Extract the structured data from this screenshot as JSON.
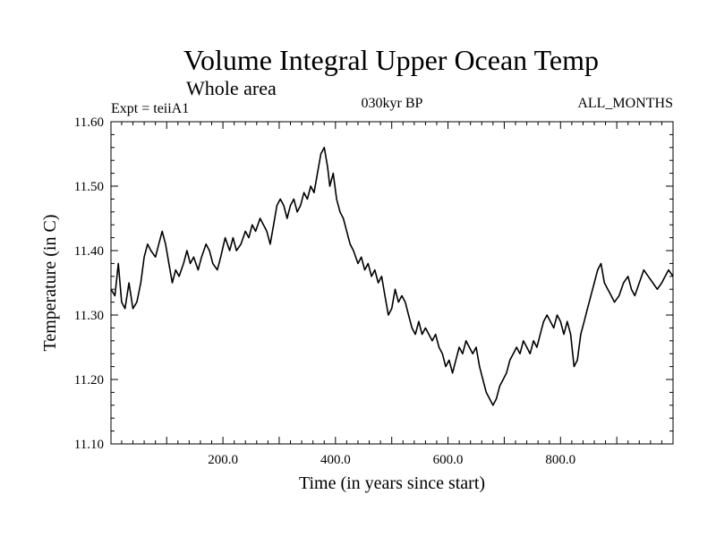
{
  "chart_data": {
    "type": "line",
    "title": "Volume Integral Upper Ocean Temp",
    "subtitle": "Whole area",
    "annotations": {
      "left": "Expt = teiiA1",
      "center": "030kyr BP",
      "right": "ALL_MONTHS"
    },
    "xlabel": "Time (in years since start)",
    "ylabel": "Temperature (in C)",
    "xlim": [
      1,
      1000
    ],
    "ylim": [
      11.1,
      11.6
    ],
    "x_ticks": [
      200,
      400,
      600,
      800
    ],
    "x_tick_labels": [
      "200.0",
      "400.0",
      "600.0",
      "800.0"
    ],
    "y_ticks": [
      11.1,
      11.2,
      11.3,
      11.4,
      11.5,
      11.6
    ],
    "y_tick_labels": [
      "11.10",
      "11.20",
      "11.30",
      "11.40",
      "11.50",
      "11.60"
    ],
    "grid": false,
    "series": [
      {
        "color": "#000000",
        "points": [
          [
            1,
            11.34
          ],
          [
            8,
            11.33
          ],
          [
            14,
            11.38
          ],
          [
            20,
            11.32
          ],
          [
            26,
            11.31
          ],
          [
            33,
            11.35
          ],
          [
            40,
            11.31
          ],
          [
            47,
            11.32
          ],
          [
            54,
            11.35
          ],
          [
            60,
            11.39
          ],
          [
            66,
            11.41
          ],
          [
            72,
            11.4
          ],
          [
            80,
            11.39
          ],
          [
            86,
            11.41
          ],
          [
            92,
            11.43
          ],
          [
            98,
            11.41
          ],
          [
            104,
            11.38
          ],
          [
            110,
            11.35
          ],
          [
            116,
            11.37
          ],
          [
            122,
            11.36
          ],
          [
            130,
            11.38
          ],
          [
            136,
            11.4
          ],
          [
            142,
            11.38
          ],
          [
            148,
            11.39
          ],
          [
            156,
            11.37
          ],
          [
            162,
            11.39
          ],
          [
            170,
            11.41
          ],
          [
            176,
            11.4
          ],
          [
            182,
            11.38
          ],
          [
            190,
            11.37
          ],
          [
            196,
            11.39
          ],
          [
            204,
            11.42
          ],
          [
            212,
            11.4
          ],
          [
            218,
            11.42
          ],
          [
            224,
            11.4
          ],
          [
            232,
            11.41
          ],
          [
            240,
            11.43
          ],
          [
            246,
            11.42
          ],
          [
            252,
            11.44
          ],
          [
            258,
            11.43
          ],
          [
            266,
            11.45
          ],
          [
            272,
            11.44
          ],
          [
            278,
            11.43
          ],
          [
            284,
            11.41
          ],
          [
            290,
            11.44
          ],
          [
            296,
            11.47
          ],
          [
            302,
            11.48
          ],
          [
            308,
            11.47
          ],
          [
            314,
            11.45
          ],
          [
            320,
            11.47
          ],
          [
            326,
            11.48
          ],
          [
            332,
            11.46
          ],
          [
            338,
            11.47
          ],
          [
            344,
            11.49
          ],
          [
            350,
            11.48
          ],
          [
            356,
            11.5
          ],
          [
            362,
            11.49
          ],
          [
            368,
            11.52
          ],
          [
            374,
            11.55
          ],
          [
            380,
            11.56
          ],
          [
            386,
            11.53
          ],
          [
            390,
            11.5
          ],
          [
            396,
            11.52
          ],
          [
            402,
            11.48
          ],
          [
            408,
            11.46
          ],
          [
            414,
            11.45
          ],
          [
            420,
            11.43
          ],
          [
            426,
            11.41
          ],
          [
            432,
            11.4
          ],
          [
            440,
            11.38
          ],
          [
            446,
            11.39
          ],
          [
            452,
            11.37
          ],
          [
            458,
            11.38
          ],
          [
            464,
            11.36
          ],
          [
            470,
            11.37
          ],
          [
            476,
            11.35
          ],
          [
            482,
            11.36
          ],
          [
            488,
            11.33
          ],
          [
            494,
            11.3
          ],
          [
            500,
            11.31
          ],
          [
            506,
            11.34
          ],
          [
            512,
            11.32
          ],
          [
            518,
            11.33
          ],
          [
            524,
            11.32
          ],
          [
            530,
            11.3
          ],
          [
            536,
            11.28
          ],
          [
            542,
            11.27
          ],
          [
            548,
            11.29
          ],
          [
            554,
            11.27
          ],
          [
            560,
            11.28
          ],
          [
            566,
            11.27
          ],
          [
            572,
            11.26
          ],
          [
            578,
            11.27
          ],
          [
            584,
            11.25
          ],
          [
            590,
            11.24
          ],
          [
            596,
            11.22
          ],
          [
            602,
            11.23
          ],
          [
            608,
            11.21
          ],
          [
            614,
            11.23
          ],
          [
            620,
            11.25
          ],
          [
            626,
            11.24
          ],
          [
            632,
            11.26
          ],
          [
            638,
            11.25
          ],
          [
            644,
            11.24
          ],
          [
            650,
            11.25
          ],
          [
            656,
            11.22
          ],
          [
            662,
            11.2
          ],
          [
            668,
            11.18
          ],
          [
            674,
            11.17
          ],
          [
            680,
            11.16
          ],
          [
            686,
            11.17
          ],
          [
            692,
            11.19
          ],
          [
            698,
            11.2
          ],
          [
            704,
            11.21
          ],
          [
            710,
            11.23
          ],
          [
            716,
            11.24
          ],
          [
            722,
            11.25
          ],
          [
            728,
            11.24
          ],
          [
            734,
            11.26
          ],
          [
            740,
            11.25
          ],
          [
            746,
            11.24
          ],
          [
            752,
            11.26
          ],
          [
            758,
            11.25
          ],
          [
            764,
            11.27
          ],
          [
            770,
            11.29
          ],
          [
            776,
            11.3
          ],
          [
            782,
            11.29
          ],
          [
            788,
            11.28
          ],
          [
            794,
            11.3
          ],
          [
            800,
            11.29
          ],
          [
            806,
            11.27
          ],
          [
            812,
            11.29
          ],
          [
            818,
            11.27
          ],
          [
            824,
            11.22
          ],
          [
            830,
            11.23
          ],
          [
            836,
            11.27
          ],
          [
            842,
            11.29
          ],
          [
            848,
            11.31
          ],
          [
            854,
            11.33
          ],
          [
            860,
            11.35
          ],
          [
            866,
            11.37
          ],
          [
            872,
            11.38
          ],
          [
            878,
            11.35
          ],
          [
            884,
            11.34
          ],
          [
            890,
            11.33
          ],
          [
            896,
            11.32
          ],
          [
            904,
            11.33
          ],
          [
            912,
            11.35
          ],
          [
            920,
            11.36
          ],
          [
            926,
            11.34
          ],
          [
            932,
            11.33
          ],
          [
            940,
            11.35
          ],
          [
            948,
            11.37
          ],
          [
            956,
            11.36
          ],
          [
            964,
            11.35
          ],
          [
            972,
            11.34
          ],
          [
            980,
            11.35
          ],
          [
            986,
            11.36
          ],
          [
            992,
            11.37
          ],
          [
            1000,
            11.36
          ]
        ]
      }
    ]
  }
}
